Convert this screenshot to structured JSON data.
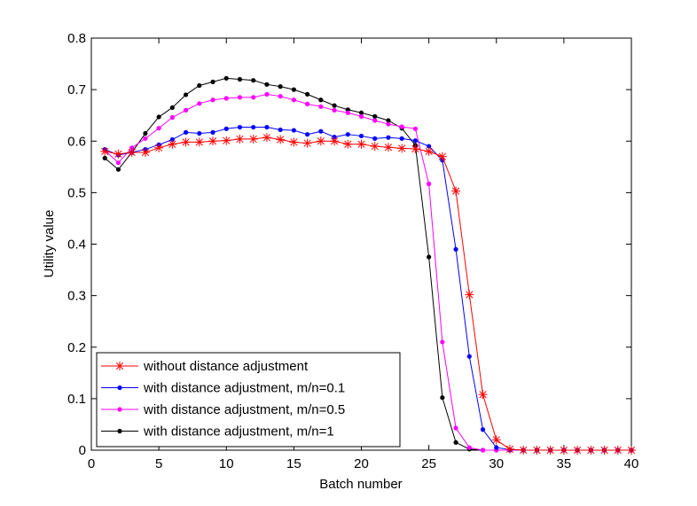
{
  "chart_data": {
    "type": "line",
    "title": "",
    "xlabel": "Batch number",
    "ylabel": "Utility value",
    "xlim": [
      0,
      40
    ],
    "ylim": [
      0,
      0.8
    ],
    "xticks": [
      0,
      5,
      10,
      15,
      20,
      25,
      30,
      35,
      40
    ],
    "xtick_labels": [
      "0",
      "5",
      "10",
      "15",
      "20",
      "25",
      "30",
      "35",
      "40"
    ],
    "yticks": [
      0,
      0.1,
      0.2,
      0.3,
      0.4,
      0.5,
      0.6,
      0.7,
      0.8
    ],
    "ytick_labels": [
      "0",
      "0.1",
      "0.2",
      "0.3",
      "0.4",
      "0.5",
      "0.6",
      "0.7",
      "0.8"
    ],
    "grid": false,
    "legend_position": "bottom-left",
    "x": [
      1,
      2,
      3,
      4,
      5,
      6,
      7,
      8,
      9,
      10,
      11,
      12,
      13,
      14,
      15,
      16,
      17,
      18,
      19,
      20,
      21,
      22,
      23,
      24,
      25,
      26,
      27,
      28,
      29,
      30,
      31,
      32,
      33,
      34,
      35,
      36,
      37,
      38,
      39,
      40
    ],
    "series": [
      {
        "name": "without distance adjustment",
        "color": "#ff0000",
        "marker": "asterisk",
        "values": [
          0.58,
          0.575,
          0.578,
          0.578,
          0.587,
          0.594,
          0.598,
          0.598,
          0.6,
          0.601,
          0.604,
          0.604,
          0.607,
          0.603,
          0.598,
          0.596,
          0.6,
          0.6,
          0.594,
          0.594,
          0.59,
          0.588,
          0.586,
          0.585,
          0.58,
          0.57,
          0.503,
          0.302,
          0.108,
          0.02,
          0.002,
          0.0,
          0.0,
          0.0,
          0.0,
          0.0,
          0.0,
          0.0,
          0.0,
          0.0
        ]
      },
      {
        "name": "with distance adjustment, m/n=0.1",
        "color": "#0000ff",
        "marker": "dot",
        "values": [
          0.584,
          0.573,
          0.578,
          0.584,
          0.593,
          0.603,
          0.617,
          0.615,
          0.617,
          0.624,
          0.627,
          0.627,
          0.627,
          0.622,
          0.621,
          0.613,
          0.619,
          0.608,
          0.613,
          0.61,
          0.605,
          0.607,
          0.605,
          0.601,
          0.59,
          0.563,
          0.39,
          0.182,
          0.04,
          0.005,
          0.001,
          0.0,
          0.0,
          0.0,
          0.0,
          0.0,
          0.0,
          0.0,
          0.0,
          0.0
        ]
      },
      {
        "name": "with distance adjustment, m/n=0.5",
        "color": "#ff00ff",
        "marker": "dot",
        "values": [
          0.582,
          0.558,
          0.587,
          0.605,
          0.625,
          0.646,
          0.66,
          0.673,
          0.68,
          0.683,
          0.685,
          0.685,
          0.691,
          0.687,
          0.68,
          0.672,
          0.667,
          0.66,
          0.655,
          0.648,
          0.64,
          0.633,
          0.628,
          0.624,
          0.517,
          0.21,
          0.043,
          0.005,
          0.0,
          0.0,
          0.0,
          0.0,
          0.0,
          0.0,
          0.0,
          0.0,
          0.0,
          0.0,
          0.0,
          0.0
        ]
      },
      {
        "name": "with distance adjustment, m/n=1",
        "color": "#000000",
        "marker": "dot",
        "values": [
          0.567,
          0.545,
          0.578,
          0.615,
          0.647,
          0.665,
          0.69,
          0.708,
          0.715,
          0.722,
          0.72,
          0.718,
          0.71,
          0.706,
          0.7,
          0.691,
          0.68,
          0.669,
          0.661,
          0.655,
          0.648,
          0.64,
          0.625,
          0.592,
          0.375,
          0.102,
          0.015,
          0.002,
          0.0,
          0.0,
          0.0,
          0.0,
          0.0,
          0.0,
          0.0,
          0.0,
          0.0,
          0.0,
          0.0,
          0.0
        ]
      }
    ]
  }
}
